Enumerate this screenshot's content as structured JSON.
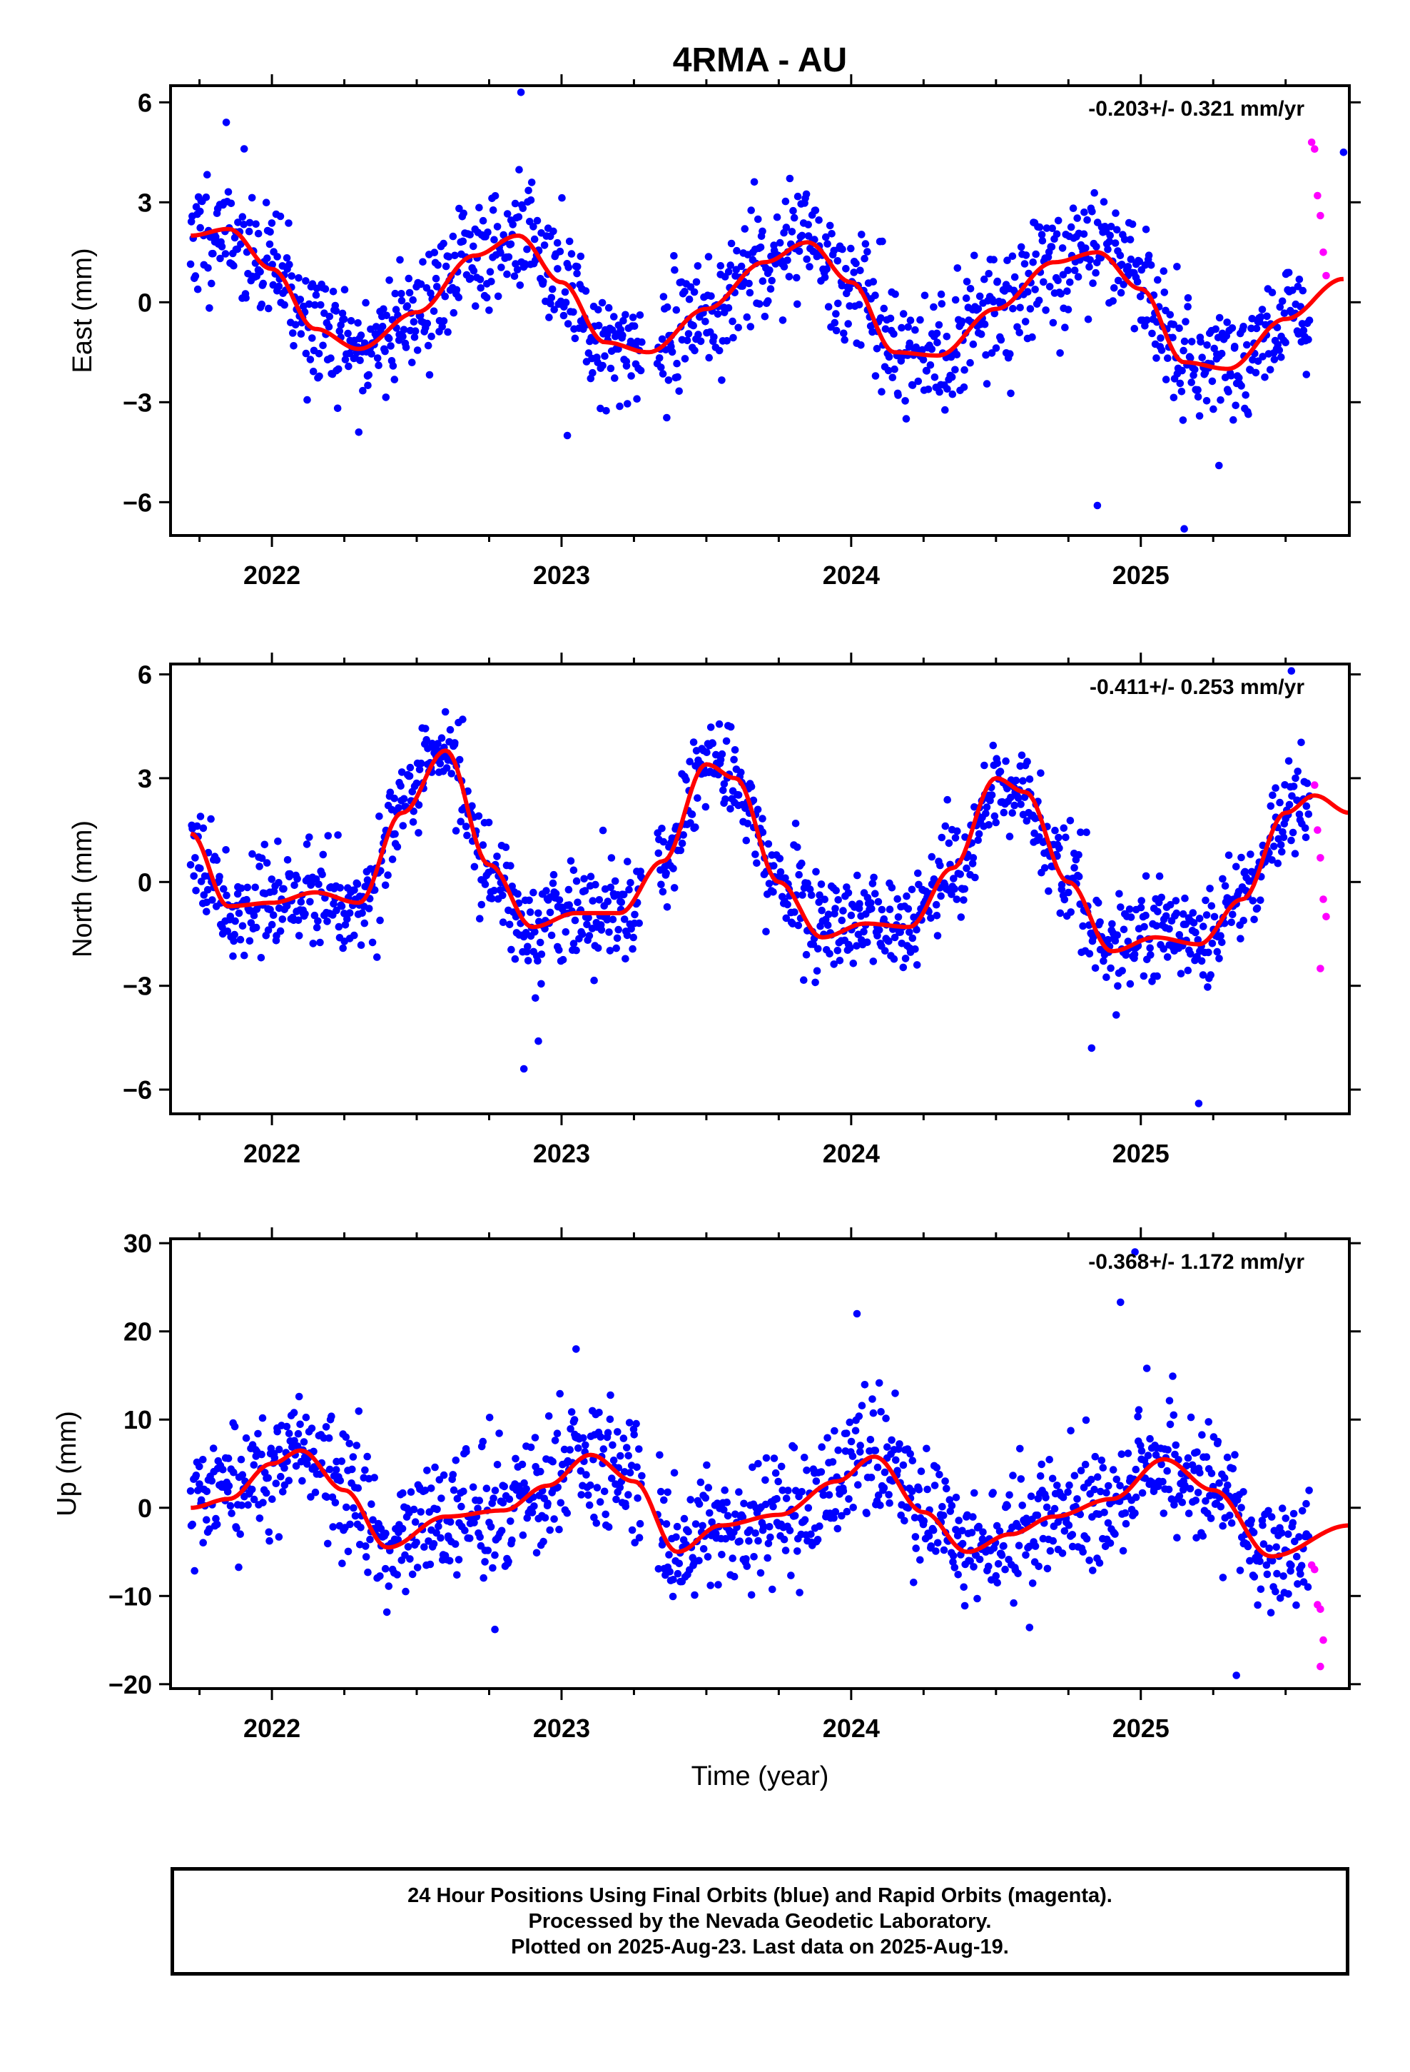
{
  "title": "4RMA - AU",
  "xlabel": "Time (year)",
  "colors": {
    "final": "#0000ff",
    "rapid": "#ff00ff",
    "model": "#ff0000",
    "frame": "#000000"
  },
  "footer": {
    "line1": "24 Hour Positions Using Final Orbits (blue) and Rapid Orbits (magenta).",
    "line2": "Processed by the Nevada Geodetic Laboratory.",
    "line3": "Plotted on 2025-Aug-23. Last data on 2025-Aug-19."
  },
  "chart_data": [
    {
      "type": "scatter",
      "component": "east",
      "ylabel": "East (mm)",
      "rate_label": "-0.203+/- 0.321 mm/yr",
      "xlim": [
        2021.65,
        2025.72
      ],
      "ylim": [
        -7.0,
        6.5
      ],
      "xticks": [
        2022,
        2023,
        2024,
        2025
      ],
      "yticks": [
        -6,
        -3,
        0,
        3,
        6
      ],
      "model": {
        "name": "model fit",
        "x": [
          2021.72,
          2021.85,
          2022.0,
          2022.15,
          2022.3,
          2022.5,
          2022.7,
          2022.85,
          2023.0,
          2023.15,
          2023.3,
          2023.5,
          2023.7,
          2023.85,
          2024.0,
          2024.15,
          2024.3,
          2024.5,
          2024.7,
          2024.85,
          2025.0,
          2025.15,
          2025.3,
          2025.5,
          2025.7
        ],
        "y": [
          2.0,
          2.2,
          1.0,
          -0.8,
          -1.4,
          -0.3,
          1.4,
          2.0,
          0.6,
          -1.2,
          -1.5,
          -0.2,
          1.2,
          1.8,
          0.6,
          -1.5,
          -1.6,
          -0.2,
          1.2,
          1.5,
          0.4,
          -1.8,
          -2.0,
          -0.5,
          0.7
        ]
      },
      "outliers": {
        "x": [
          2022.3,
          2022.86,
          2023.02,
          2024.85,
          2025.15,
          2025.27,
          2025.7
        ],
        "y": [
          -3.9,
          6.3,
          -4.0,
          -6.1,
          -6.8,
          -4.9,
          4.5
        ]
      },
      "rapid": {
        "x": [
          2025.59,
          2025.6,
          2025.61,
          2025.62,
          2025.63,
          2025.64
        ],
        "y": [
          4.8,
          4.6,
          3.2,
          2.6,
          1.5,
          0.8
        ]
      },
      "scatter_sd": 0.9,
      "seed": 11
    },
    {
      "type": "scatter",
      "component": "north",
      "ylabel": "North (mm)",
      "rate_label": "-0.411+/- 0.253 mm/yr",
      "xlim": [
        2021.65,
        2025.72
      ],
      "ylim": [
        -6.7,
        6.3
      ],
      "xticks": [
        2022,
        2023,
        2024,
        2025
      ],
      "yticks": [
        -6,
        -3,
        0,
        3,
        6
      ],
      "model": {
        "name": "model fit",
        "x": [
          2021.72,
          2021.85,
          2022.0,
          2022.15,
          2022.3,
          2022.45,
          2022.6,
          2022.75,
          2022.9,
          2023.05,
          2023.2,
          2023.35,
          2023.5,
          2023.6,
          2023.75,
          2023.9,
          2024.05,
          2024.2,
          2024.35,
          2024.5,
          2024.6,
          2024.75,
          2024.9,
          2025.05,
          2025.2,
          2025.35,
          2025.5,
          2025.6,
          2025.72
        ],
        "y": [
          1.4,
          -0.7,
          -0.6,
          -0.3,
          -0.6,
          2.0,
          3.8,
          0.5,
          -1.3,
          -0.9,
          -0.9,
          0.6,
          3.4,
          3.0,
          0.0,
          -1.6,
          -1.2,
          -1.3,
          0.4,
          3.0,
          2.6,
          0.0,
          -2.0,
          -1.6,
          -1.8,
          -0.5,
          2.0,
          2.5,
          2.0
        ]
      },
      "outliers": {
        "x": [
          2022.87,
          2022.92,
          2024.83,
          2025.2,
          2025.52
        ],
        "y": [
          -5.4,
          -4.6,
          -4.8,
          -6.4,
          6.1
        ]
      },
      "rapid": {
        "x": [
          2025.6,
          2025.61,
          2025.62,
          2025.63,
          2025.64,
          2025.62
        ],
        "y": [
          2.8,
          1.5,
          0.7,
          -0.5,
          -1.0,
          -2.5
        ]
      },
      "scatter_sd": 0.7,
      "seed": 23
    },
    {
      "type": "scatter",
      "component": "up",
      "ylabel": "Up (mm)",
      "xlabel": "Time (year)",
      "rate_label": "-0.368+/- 1.172 mm/yr",
      "xlim": [
        2021.65,
        2025.72
      ],
      "ylim": [
        -20.5,
        30.5
      ],
      "xticks": [
        2022,
        2023,
        2024,
        2025
      ],
      "yticks": [
        -20,
        -10,
        0,
        10,
        20,
        30
      ],
      "model": {
        "name": "model fit",
        "x": [
          2021.72,
          2021.85,
          2022.0,
          2022.1,
          2022.25,
          2022.4,
          2022.6,
          2022.8,
          2022.95,
          2023.1,
          2023.25,
          2023.4,
          2023.55,
          2023.75,
          2023.95,
          2024.08,
          2024.25,
          2024.4,
          2024.55,
          2024.7,
          2024.9,
          2025.08,
          2025.25,
          2025.45,
          2025.72
        ],
        "y": [
          0.0,
          1.0,
          5.0,
          6.5,
          2.0,
          -4.5,
          -1.0,
          -0.3,
          2.5,
          6.0,
          3.0,
          -5.0,
          -2.0,
          -0.8,
          3.0,
          5.8,
          -0.5,
          -5.0,
          -3.0,
          -1.0,
          1.0,
          5.5,
          2.0,
          -5.5,
          -2.0
        ]
      },
      "outliers": {
        "x": [
          2022.77,
          2023.05,
          2024.02,
          2024.93,
          2024.98,
          2025.33
        ],
        "y": [
          -13.8,
          18.0,
          22.0,
          23.3,
          29.0,
          -19.0
        ]
      },
      "rapid": {
        "x": [
          2025.59,
          2025.6,
          2025.61,
          2025.62,
          2025.63,
          2025.62
        ],
        "y": [
          -6.5,
          -7.0,
          -11.0,
          -11.5,
          -15.0,
          -18.0
        ]
      },
      "scatter_sd": 3.5,
      "seed": 37
    }
  ]
}
